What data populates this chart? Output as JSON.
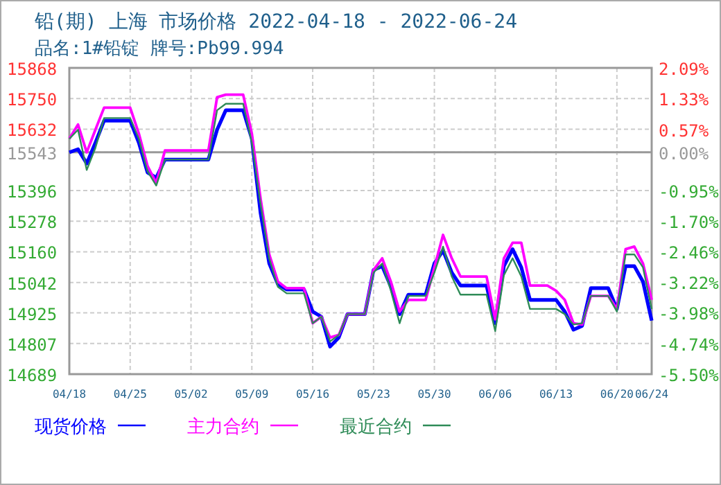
{
  "chart_data": {
    "type": "line",
    "title": "铅(期) 上海 市场价格 2022-04-18 - 2022-06-24",
    "subtitle": "品名:1#铅锭 牌号:Pb99.994",
    "x": [
      "2022-04-18",
      "2022-04-19",
      "2022-04-20",
      "2022-04-21",
      "2022-04-22",
      "2022-04-23",
      "2022-04-24",
      "2022-04-25",
      "2022-04-26",
      "2022-04-27",
      "2022-04-28",
      "2022-04-29",
      "2022-04-30",
      "2022-05-01",
      "2022-05-02",
      "2022-05-03",
      "2022-05-04",
      "2022-05-05",
      "2022-05-06",
      "2022-05-07",
      "2022-05-08",
      "2022-05-09",
      "2022-05-10",
      "2022-05-11",
      "2022-05-12",
      "2022-05-13",
      "2022-05-14",
      "2022-05-15",
      "2022-05-16",
      "2022-05-17",
      "2022-05-18",
      "2022-05-19",
      "2022-05-20",
      "2022-05-21",
      "2022-05-22",
      "2022-05-23",
      "2022-05-24",
      "2022-05-25",
      "2022-05-26",
      "2022-05-27",
      "2022-05-28",
      "2022-05-29",
      "2022-05-30",
      "2022-05-31",
      "2022-06-01",
      "2022-06-02",
      "2022-06-03",
      "2022-06-04",
      "2022-06-05",
      "2022-06-06",
      "2022-06-07",
      "2022-06-08",
      "2022-06-09",
      "2022-06-10",
      "2022-06-11",
      "2022-06-12",
      "2022-06-13",
      "2022-06-14",
      "2022-06-15",
      "2022-06-16",
      "2022-06-17",
      "2022-06-18",
      "2022-06-19",
      "2022-06-20",
      "2022-06-21",
      "2022-06-22",
      "2022-06-23",
      "2022-06-24"
    ],
    "xlim": [
      "2022-04-18",
      "2022-06-24"
    ],
    "xticks": [
      {
        "value": "2022-04-18",
        "label": "04/18"
      },
      {
        "value": "2022-04-25",
        "label": "04/25"
      },
      {
        "value": "2022-05-02",
        "label": "05/02"
      },
      {
        "value": "2022-05-09",
        "label": "05/09"
      },
      {
        "value": "2022-05-16",
        "label": "05/16"
      },
      {
        "value": "2022-05-23",
        "label": "05/23"
      },
      {
        "value": "2022-05-30",
        "label": "05/30"
      },
      {
        "value": "2022-06-06",
        "label": "06/06"
      },
      {
        "value": "2022-06-13",
        "label": "06/13"
      },
      {
        "value": "2022-06-20",
        "label": "06/20"
      },
      {
        "value": "2022-06-24",
        "label": "06/24"
      }
    ],
    "ylim": [
      14689,
      15868
    ],
    "yticks": [
      15868,
      15750,
      15632,
      15543,
      15396,
      15278,
      15160,
      15042,
      14925,
      14807,
      14689
    ],
    "y2lim": [
      -5.5,
      2.09
    ],
    "y2ticks": [
      {
        "value": 2.09,
        "label": "2.09%"
      },
      {
        "value": 1.33,
        "label": "1.33%"
      },
      {
        "value": 0.57,
        "label": "0.57%"
      },
      {
        "value": 0,
        "label": "0.00%"
      },
      {
        "value": -0.95,
        "label": "-0.95%"
      },
      {
        "value": -1.7,
        "label": "-1.70%"
      },
      {
        "value": -2.46,
        "label": "-2.46%"
      },
      {
        "value": -3.22,
        "label": "-3.22%"
      },
      {
        "value": -3.98,
        "label": "-3.98%"
      },
      {
        "value": -4.74,
        "label": "-4.74%"
      },
      {
        "value": -5.5,
        "label": "-5.50%"
      }
    ],
    "ref_lines": [
      {
        "axis": "y",
        "value": 15543,
        "color": "#999999"
      }
    ],
    "grid": true,
    "legend": "bottom",
    "series": [
      {
        "name": "现货价格",
        "color": "#0000ff",
        "values": [
          15543,
          15555,
          15500,
          15580,
          15665,
          15665,
          15665,
          15665,
          15580,
          15465,
          15445,
          15515,
          15515,
          15515,
          15515,
          15515,
          15515,
          15630,
          15705,
          15705,
          15705,
          15595,
          15310,
          15115,
          15035,
          15015,
          15015,
          15015,
          14930,
          14910,
          14795,
          14830,
          14920,
          14920,
          14920,
          15090,
          15105,
          15025,
          14920,
          14995,
          14995,
          14995,
          15115,
          15165,
          15080,
          15030,
          15030,
          15030,
          15030,
          14885,
          15105,
          15170,
          15100,
          14975,
          14975,
          14975,
          14975,
          14930,
          14860,
          14875,
          15020,
          15020,
          15020,
          14940,
          15105,
          15105,
          15045,
          14895
        ]
      },
      {
        "name": "主力合约",
        "color": "#ff00ff",
        "values": [
          15595,
          15650,
          15543,
          15630,
          15715,
          15715,
          15715,
          15715,
          15615,
          15490,
          15425,
          15550,
          15550,
          15550,
          15550,
          15550,
          15550,
          15755,
          15765,
          15765,
          15765,
          15615,
          15365,
          15150,
          15045,
          15020,
          15020,
          15020,
          14885,
          14910,
          14830,
          14840,
          14920,
          14920,
          14920,
          15090,
          15135,
          15045,
          14930,
          14975,
          14975,
          14975,
          15100,
          15225,
          15135,
          15065,
          15065,
          15065,
          15065,
          14900,
          15135,
          15195,
          15195,
          15030,
          15030,
          15030,
          15010,
          14975,
          14885,
          14880,
          14990,
          14990,
          14990,
          14940,
          15170,
          15180,
          15115,
          14975
        ]
      },
      {
        "name": "最近合约",
        "color": "#2e8b57",
        "values": [
          15595,
          15630,
          15475,
          15560,
          15675,
          15675,
          15675,
          15675,
          15595,
          15470,
          15415,
          15515,
          15515,
          15515,
          15515,
          15515,
          15515,
          15705,
          15730,
          15730,
          15730,
          15580,
          15345,
          15135,
          15025,
          15000,
          15000,
          15000,
          14885,
          14910,
          14815,
          14840,
          14920,
          14920,
          14920,
          15080,
          15115,
          15010,
          14885,
          14990,
          14990,
          14990,
          15080,
          15180,
          15065,
          14995,
          14995,
          14995,
          14995,
          14855,
          15070,
          15135,
          15065,
          14940,
          14940,
          14940,
          14940,
          14920,
          14880,
          14885,
          14990,
          14990,
          14990,
          14930,
          15150,
          15150,
          15100,
          14940
        ]
      }
    ]
  }
}
